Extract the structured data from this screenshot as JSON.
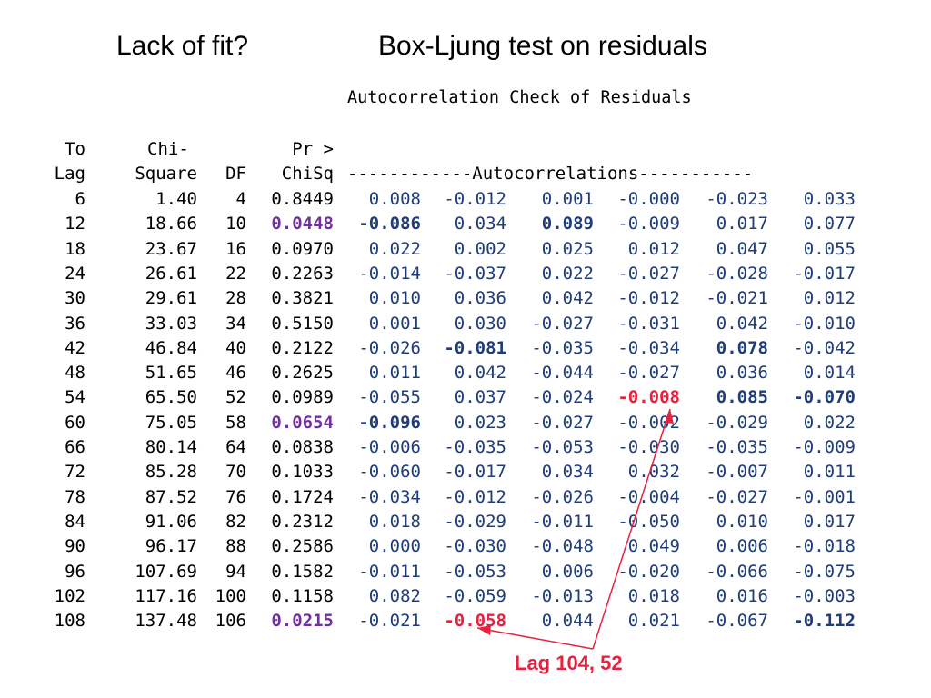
{
  "heading_left": "Lack of fit?",
  "heading_right": "Box-Ljung test on residuals",
  "subtitle": "Autocorrelation Check of Residuals",
  "headers": {
    "to": "To",
    "lag": "Lag",
    "chi1": "Chi-",
    "chi2": "Square",
    "df": "DF",
    "pr1": "Pr >",
    "pr2": "ChiSq",
    "autocorr": "------------Autocorrelations-----------"
  },
  "rows": [
    {
      "lag": "6",
      "chisq": "1.40",
      "df": "4",
      "pr": "0.8449",
      "ac": [
        "0.008",
        "-0.012",
        "0.001",
        "-0.000",
        "-0.023",
        "0.033"
      ]
    },
    {
      "lag": "12",
      "chisq": "18.66",
      "df": "10",
      "pr": "0.0448",
      "ac": [
        "-0.086",
        "0.034",
        "0.089",
        "-0.009",
        "0.017",
        "0.077"
      ]
    },
    {
      "lag": "18",
      "chisq": "23.67",
      "df": "16",
      "pr": "0.0970",
      "ac": [
        "0.022",
        "0.002",
        "0.025",
        "0.012",
        "0.047",
        "0.055"
      ]
    },
    {
      "lag": "24",
      "chisq": "26.61",
      "df": "22",
      "pr": "0.2263",
      "ac": [
        "-0.014",
        "-0.037",
        "0.022",
        "-0.027",
        "-0.028",
        "-0.017"
      ]
    },
    {
      "lag": "30",
      "chisq": "29.61",
      "df": "28",
      "pr": "0.3821",
      "ac": [
        "0.010",
        "0.036",
        "0.042",
        "-0.012",
        "-0.021",
        "0.012"
      ]
    },
    {
      "lag": "36",
      "chisq": "33.03",
      "df": "34",
      "pr": "0.5150",
      "ac": [
        "0.001",
        "0.030",
        "-0.027",
        "-0.031",
        "0.042",
        "-0.010"
      ]
    },
    {
      "lag": "42",
      "chisq": "46.84",
      "df": "40",
      "pr": "0.2122",
      "ac": [
        "-0.026",
        "-0.081",
        "-0.035",
        "-0.034",
        "0.078",
        "-0.042"
      ]
    },
    {
      "lag": "48",
      "chisq": "51.65",
      "df": "46",
      "pr": "0.2625",
      "ac": [
        "0.011",
        "0.042",
        "-0.044",
        "-0.027",
        "0.036",
        "0.014"
      ]
    },
    {
      "lag": "54",
      "chisq": "65.50",
      "df": "52",
      "pr": "0.0989",
      "ac": [
        "-0.055",
        "0.037",
        "-0.024",
        "-0.008",
        "0.085",
        "-0.070"
      ]
    },
    {
      "lag": "60",
      "chisq": "75.05",
      "df": "58",
      "pr": "0.0654",
      "ac": [
        "-0.096",
        "0.023",
        "-0.027",
        "-0.002",
        "-0.029",
        "0.022"
      ]
    },
    {
      "lag": "66",
      "chisq": "80.14",
      "df": "64",
      "pr": "0.0838",
      "ac": [
        "-0.006",
        "-0.035",
        "-0.053",
        "-0.030",
        "-0.035",
        "-0.009"
      ]
    },
    {
      "lag": "72",
      "chisq": "85.28",
      "df": "70",
      "pr": "0.1033",
      "ac": [
        "-0.060",
        "-0.017",
        "0.034",
        "0.032",
        "-0.007",
        "0.011"
      ]
    },
    {
      "lag": "78",
      "chisq": "87.52",
      "df": "76",
      "pr": "0.1724",
      "ac": [
        "-0.034",
        "-0.012",
        "-0.026",
        "-0.004",
        "-0.027",
        "-0.001"
      ]
    },
    {
      "lag": "84",
      "chisq": "91.06",
      "df": "82",
      "pr": "0.2312",
      "ac": [
        "0.018",
        "-0.029",
        "-0.011",
        "-0.050",
        "0.010",
        "0.017"
      ]
    },
    {
      "lag": "90",
      "chisq": "96.17",
      "df": "88",
      "pr": "0.2586",
      "ac": [
        "0.000",
        "-0.030",
        "-0.048",
        "0.049",
        "0.006",
        "-0.018"
      ]
    },
    {
      "lag": "96",
      "chisq": "107.69",
      "df": "94",
      "pr": "0.1582",
      "ac": [
        "-0.011",
        "-0.053",
        "0.006",
        "-0.020",
        "-0.066",
        "-0.075"
      ]
    },
    {
      "lag": "102",
      "chisq": "117.16",
      "df": "100",
      "pr": "0.1158",
      "ac": [
        "0.082",
        "-0.059",
        "-0.013",
        "0.018",
        "0.016",
        "-0.003"
      ]
    },
    {
      "lag": "108",
      "chisq": "137.48",
      "df": "106",
      "pr": "0.0215",
      "ac": [
        "-0.021",
        "-0.058",
        "0.044",
        "0.021",
        "-0.067",
        "-0.112"
      ]
    }
  ],
  "highlights": {
    "pr_purple_rows": [
      1,
      9,
      17
    ],
    "ac_bold": [
      [
        1,
        0
      ],
      [
        1,
        2
      ],
      [
        6,
        1
      ],
      [
        6,
        4
      ],
      [
        8,
        4
      ],
      [
        8,
        5
      ],
      [
        9,
        0
      ],
      [
        17,
        5
      ]
    ],
    "ac_red": [
      [
        8,
        3
      ],
      [
        17,
        1
      ]
    ]
  },
  "annotation": "Lag 104, 52",
  "colors": {
    "accent_blue": "#1f3d7a",
    "purple": "#7030a0",
    "red": "#e8213f"
  }
}
